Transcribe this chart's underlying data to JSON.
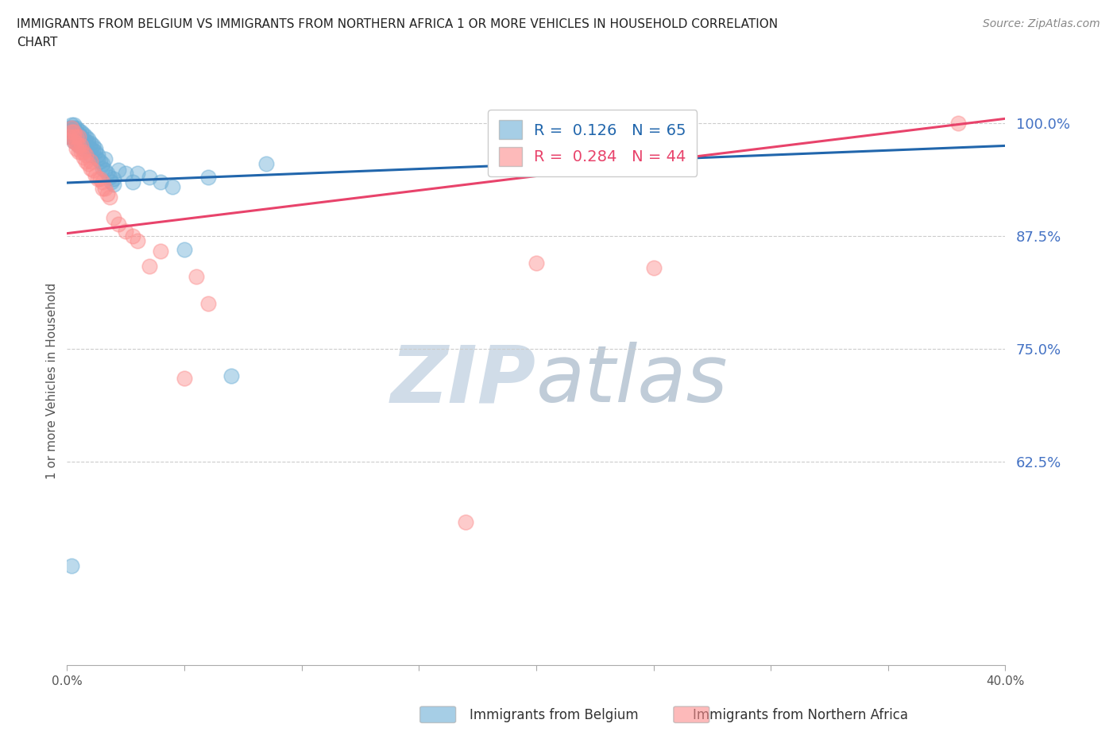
{
  "title_line1": "IMMIGRANTS FROM BELGIUM VS IMMIGRANTS FROM NORTHERN AFRICA 1 OR MORE VEHICLES IN HOUSEHOLD CORRELATION",
  "title_line2": "CHART",
  "source": "Source: ZipAtlas.com",
  "ylabel": "1 or more Vehicles in Household",
  "xlim": [
    0.0,
    0.4
  ],
  "ylim": [
    0.4,
    1.03
  ],
  "xticks": [
    0.0,
    0.05,
    0.1,
    0.15,
    0.2,
    0.25,
    0.3,
    0.35,
    0.4
  ],
  "yticks": [
    0.625,
    0.75,
    0.875,
    1.0
  ],
  "yticklabels": [
    "62.5%",
    "75.0%",
    "87.5%",
    "100.0%"
  ],
  "belgium_color": "#6baed6",
  "n_africa_color": "#fc8d8d",
  "trend_belgium_color": "#2166ac",
  "trend_n_africa_color": "#e8436b",
  "R_belgium": 0.126,
  "N_belgium": 65,
  "R_n_africa": 0.284,
  "N_n_africa": 44,
  "legend_label_belgium": "Immigrants from Belgium",
  "legend_label_n_africa": "Immigrants from Northern Africa",
  "watermark_zip": "ZIP",
  "watermark_atlas": "atlas",
  "watermark_color_zip": "#d0dce8",
  "watermark_color_atlas": "#c0ccd8",
  "trend_bel_x0": 0.0,
  "trend_bel_y0": 0.934,
  "trend_bel_x1": 0.4,
  "trend_bel_y1": 0.975,
  "trend_afr_x0": 0.0,
  "trend_afr_y0": 0.878,
  "trend_afr_x1": 0.4,
  "trend_afr_y1": 1.005,
  "belgium_x": [
    0.001,
    0.001,
    0.001,
    0.002,
    0.002,
    0.002,
    0.002,
    0.002,
    0.003,
    0.003,
    0.003,
    0.003,
    0.003,
    0.004,
    0.004,
    0.004,
    0.004,
    0.005,
    0.005,
    0.005,
    0.005,
    0.006,
    0.006,
    0.006,
    0.006,
    0.007,
    0.007,
    0.007,
    0.007,
    0.008,
    0.008,
    0.008,
    0.009,
    0.009,
    0.01,
    0.01,
    0.01,
    0.011,
    0.011,
    0.012,
    0.012,
    0.013,
    0.013,
    0.014,
    0.015,
    0.015,
    0.016,
    0.016,
    0.017,
    0.018,
    0.019,
    0.02,
    0.02,
    0.022,
    0.025,
    0.028,
    0.03,
    0.035,
    0.04,
    0.045,
    0.05,
    0.06,
    0.07,
    0.085,
    0.002
  ],
  "belgium_y": [
    0.995,
    0.99,
    0.985,
    0.998,
    0.995,
    0.992,
    0.988,
    0.985,
    0.998,
    0.995,
    0.99,
    0.985,
    0.98,
    0.995,
    0.99,
    0.985,
    0.98,
    0.992,
    0.988,
    0.982,
    0.975,
    0.99,
    0.985,
    0.98,
    0.975,
    0.988,
    0.982,
    0.978,
    0.972,
    0.985,
    0.98,
    0.975,
    0.982,
    0.978,
    0.978,
    0.972,
    0.965,
    0.975,
    0.97,
    0.972,
    0.968,
    0.965,
    0.96,
    0.958,
    0.955,
    0.95,
    0.948,
    0.96,
    0.945,
    0.94,
    0.935,
    0.938,
    0.932,
    0.948,
    0.945,
    0.935,
    0.945,
    0.94,
    0.935,
    0.93,
    0.86,
    0.94,
    0.72,
    0.955,
    0.51
  ],
  "n_africa_x": [
    0.001,
    0.002,
    0.002,
    0.003,
    0.003,
    0.003,
    0.004,
    0.004,
    0.004,
    0.005,
    0.005,
    0.005,
    0.006,
    0.006,
    0.007,
    0.007,
    0.008,
    0.008,
    0.009,
    0.01,
    0.01,
    0.011,
    0.012,
    0.013,
    0.014,
    0.015,
    0.015,
    0.016,
    0.017,
    0.018,
    0.02,
    0.022,
    0.025,
    0.028,
    0.03,
    0.035,
    0.04,
    0.05,
    0.055,
    0.06,
    0.17,
    0.2,
    0.25,
    0.38
  ],
  "n_africa_y": [
    0.985,
    0.995,
    0.99,
    0.99,
    0.985,
    0.98,
    0.985,
    0.978,
    0.972,
    0.985,
    0.975,
    0.968,
    0.975,
    0.968,
    0.968,
    0.962,
    0.965,
    0.958,
    0.955,
    0.958,
    0.95,
    0.948,
    0.942,
    0.938,
    0.938,
    0.935,
    0.928,
    0.928,
    0.922,
    0.918,
    0.895,
    0.888,
    0.88,
    0.875,
    0.87,
    0.842,
    0.858,
    0.718,
    0.83,
    0.8,
    0.558,
    0.845,
    0.84,
    1.0
  ]
}
